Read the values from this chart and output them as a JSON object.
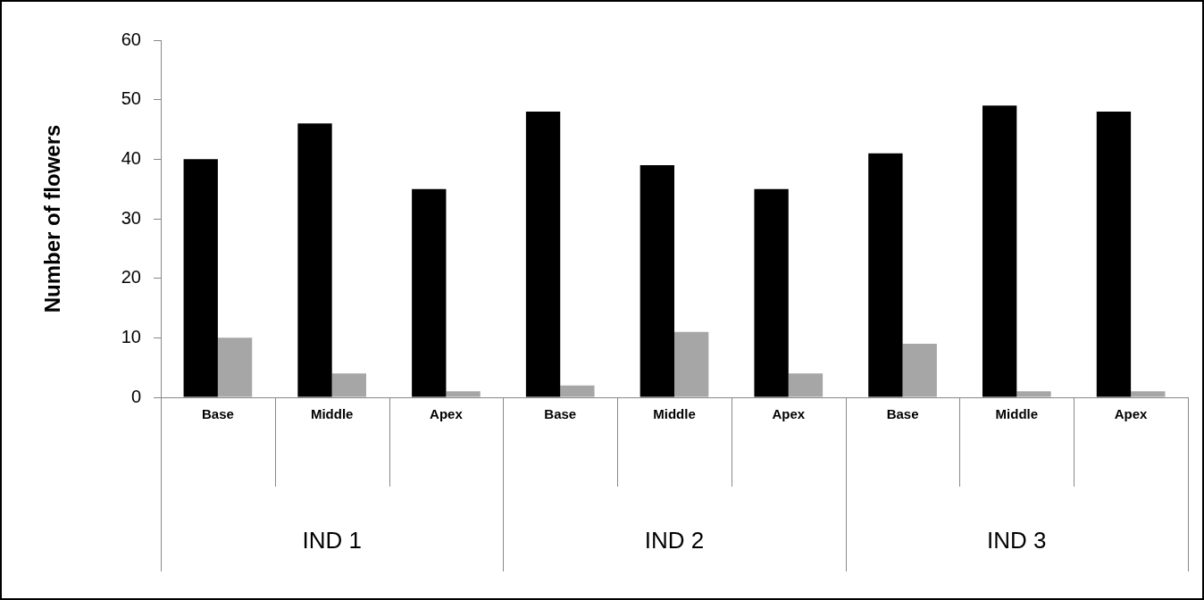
{
  "chart_data": {
    "type": "bar",
    "ylabel": "Number of flowers",
    "categories": [
      "Base",
      "Middle",
      "Apex",
      "Base",
      "Middle",
      "Apex",
      "Base",
      "Middle",
      "Apex"
    ],
    "series": [
      {
        "color": "#000000",
        "values": [
          40,
          46,
          35,
          48,
          39,
          35,
          41,
          49,
          48
        ]
      },
      {
        "color": "#a6a6a6",
        "values": [
          10,
          4,
          1,
          2,
          11,
          4,
          9,
          1,
          1
        ]
      }
    ],
    "annotations": [
      "IND 1",
      "IND 2",
      "IND 3"
    ],
    "ylim": [
      0,
      60
    ],
    "yticks": [
      0,
      10,
      20,
      30,
      40,
      50,
      60
    ]
  }
}
